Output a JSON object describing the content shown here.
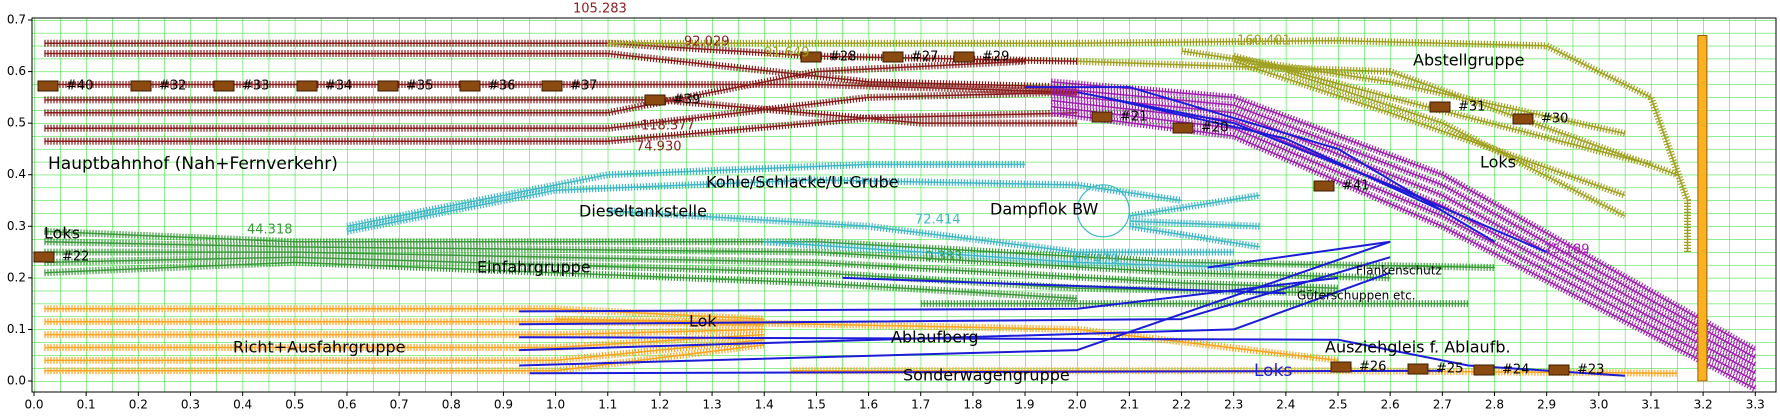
{
  "axes": {
    "xticks": [
      {
        "value": 0,
        "label": "0.0"
      },
      0.1,
      0.2,
      0.3,
      0.4,
      0.5,
      0.6,
      0.7,
      0.8,
      0.9,
      {
        "value": 1,
        "label": "1.0"
      },
      1.1,
      1.2,
      1.3,
      1.4,
      1.5,
      1.6,
      1.7,
      1.8,
      1.9,
      {
        "value": 2,
        "label": "2.0"
      },
      2.1,
      2.2,
      2.3,
      2.4,
      2.5,
      2.6,
      2.7,
      2.8,
      2.9,
      {
        "value": 3,
        "label": "3.0"
      },
      3.1,
      3.2,
      3.3
    ],
    "yticks": [
      {
        "value": 0,
        "label": "0.0"
      },
      0.1,
      0.2,
      0.3,
      0.4,
      0.5,
      0.6,
      0.7
    ]
  },
  "labels": {
    "regions": [
      "Hauptbahnhof (Nah+Fernverkehr)",
      "Loks",
      "Dieseltankstelle",
      "Kohle/Schlacke/U-Grube",
      "Dampflok BW",
      "Einfahrgruppe",
      "Lok",
      "Ablaufberg",
      "Richt+Ausfahrgruppe",
      "Sonderwagengruppe",
      "Loks",
      "Ausziehgleis f. Ablaufb.",
      "Güterschuppen etc.",
      "Flankenschutz",
      "Abstellgruppe",
      "Loks"
    ],
    "trains": [
      "#40",
      "#32",
      "#33",
      "#34",
      "#35",
      "#36",
      "#37",
      "#39",
      "#28",
      "#27",
      "#29",
      "#21",
      "#20",
      "#41",
      "#31",
      "#30",
      "#22",
      "#26",
      "#25",
      "#24",
      "#23"
    ],
    "annotations": [
      "105.283",
      "92.029",
      "91.649",
      "118.377",
      "74.930",
      "44.318",
      "72.414",
      "0.383",
      "63.470",
      "160.401",
      "75.189"
    ]
  }
}
